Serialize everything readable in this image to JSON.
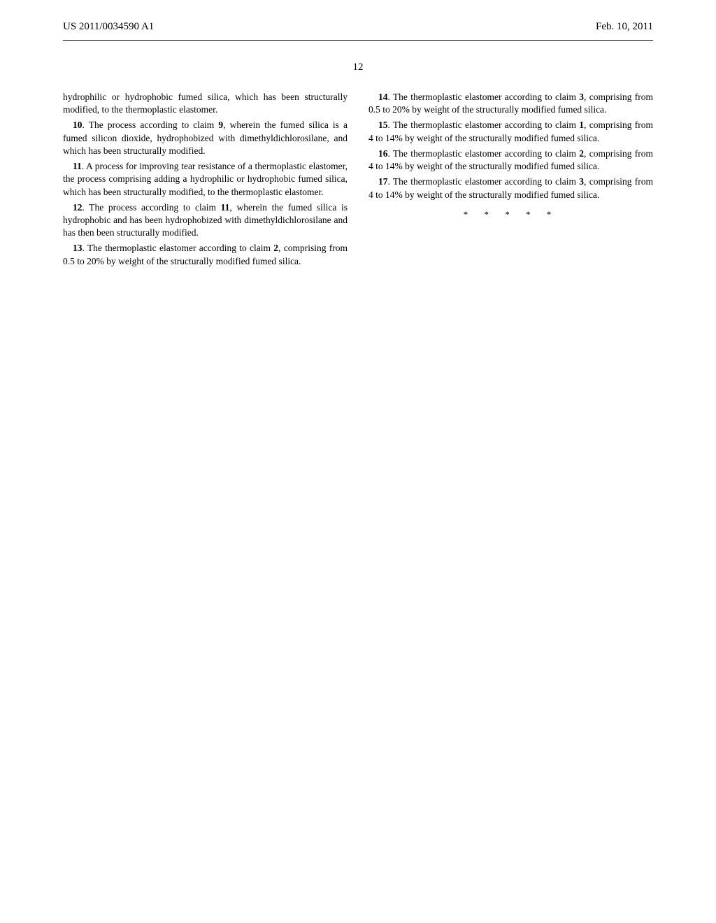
{
  "header": {
    "application_number": "US 2011/0034590 A1",
    "date": "Feb. 10, 2011"
  },
  "page_number": "12",
  "left_column": {
    "claim9_continuation": "hydrophilic or hydrophobic fumed silica, which has been structurally modified, to the thermoplastic elastomer.",
    "claim10_num": "10",
    "claim10_text": ". The process according to claim ",
    "claim10_ref": "9",
    "claim10_cont": ", wherein the fumed silica is a fumed silicon dioxide, hydrophobized with dimethyldichlorosilane, and which has been structurally modified.",
    "claim11_num": "11",
    "claim11_text": ". A process for improving tear resistance of a thermoplastic elastomer, the process comprising adding a hydrophilic or hydrophobic fumed silica, which has been structurally modified, to the thermoplastic elastomer.",
    "claim12_num": "12",
    "claim12_text": ". The process according to claim ",
    "claim12_ref": "11",
    "claim12_cont": ", wherein the fumed silica is hydrophobic and has been hydrophobized with dimethyldichlorosilane and has then been structurally modified.",
    "claim13_num": "13",
    "claim13_text": ". The thermoplastic elastomer according to claim ",
    "claim13_ref": "2",
    "claim13_cont": ", comprising from 0.5 to 20% by weight of the structurally modified fumed silica."
  },
  "right_column": {
    "claim14_num": "14",
    "claim14_text": ". The thermoplastic elastomer according to claim ",
    "claim14_ref": "3",
    "claim14_cont": ", comprising from 0.5 to 20% by weight of the structurally modified fumed silica.",
    "claim15_num": "15",
    "claim15_text": ". The thermoplastic elastomer according to claim ",
    "claim15_ref": "1",
    "claim15_cont": ", comprising from 4 to 14% by weight of the structurally modified fumed silica.",
    "claim16_num": "16",
    "claim16_text": ". The thermoplastic elastomer according to claim ",
    "claim16_ref": "2",
    "claim16_cont": ", comprising from 4 to 14% by weight of the structurally modified fumed silica.",
    "claim17_num": "17",
    "claim17_text": ". The thermoplastic elastomer according to claim ",
    "claim17_ref": "3",
    "claim17_cont": ", comprising from 4 to 14% by weight of the structurally modified fumed silica."
  },
  "end_marks": "* * * * *"
}
